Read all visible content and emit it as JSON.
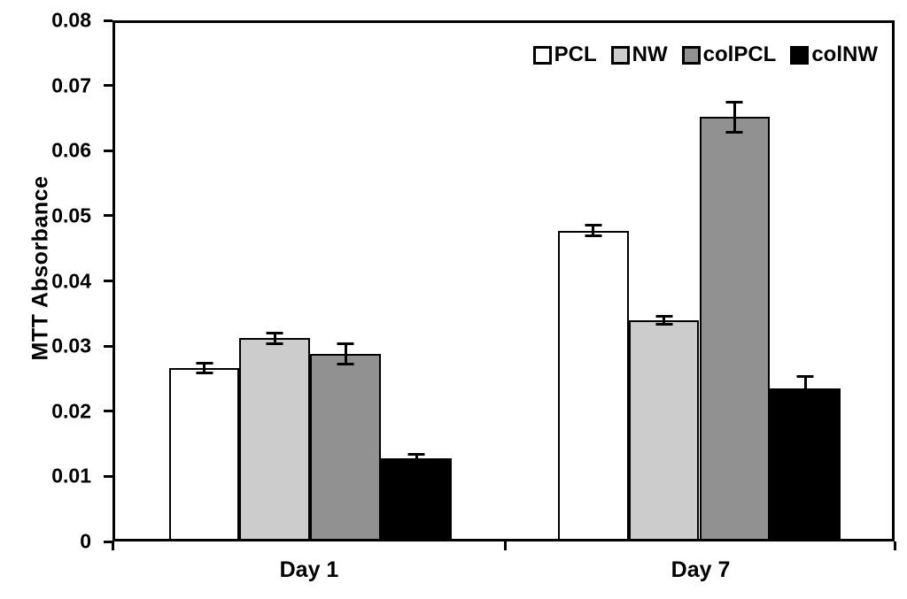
{
  "chart_data": {
    "type": "bar",
    "title": "",
    "xlabel": "",
    "ylabel": "MTT Absorbance",
    "ylim": [
      0,
      0.08
    ],
    "yticks": [
      0,
      0.01,
      0.02,
      0.03,
      0.04,
      0.05,
      0.06,
      0.07,
      0.08
    ],
    "ytick_labels": [
      "0",
      "0.01",
      "0.02",
      "0.03",
      "0.04",
      "0.05",
      "0.06",
      "0.07",
      "0.08"
    ],
    "categories": [
      "Day 1",
      "Day 7"
    ],
    "series": [
      {
        "name": "PCL",
        "color": "#ffffff",
        "values": [
          0.0265,
          0.0478
        ],
        "errors": [
          0.001,
          0.001
        ]
      },
      {
        "name": "NW",
        "color": "#cccccc",
        "values": [
          0.0311,
          0.0339
        ],
        "errors": [
          0.001,
          0.0008
        ]
      },
      {
        "name": "colPCL",
        "color": "#919191",
        "values": [
          0.0287,
          0.0654
        ],
        "errors": [
          0.0018,
          0.0025
        ]
      },
      {
        "name": "colNW",
        "color": "#000000",
        "values": [
          0.0125,
          0.0233
        ],
        "errors": [
          0.0008,
          0.0021
        ]
      }
    ],
    "error_bars": true,
    "grid": false,
    "legend_position": "top-right-inside",
    "bar_border_color": "#000000",
    "axis_color": "#000000",
    "background_color": "#ffffff"
  }
}
